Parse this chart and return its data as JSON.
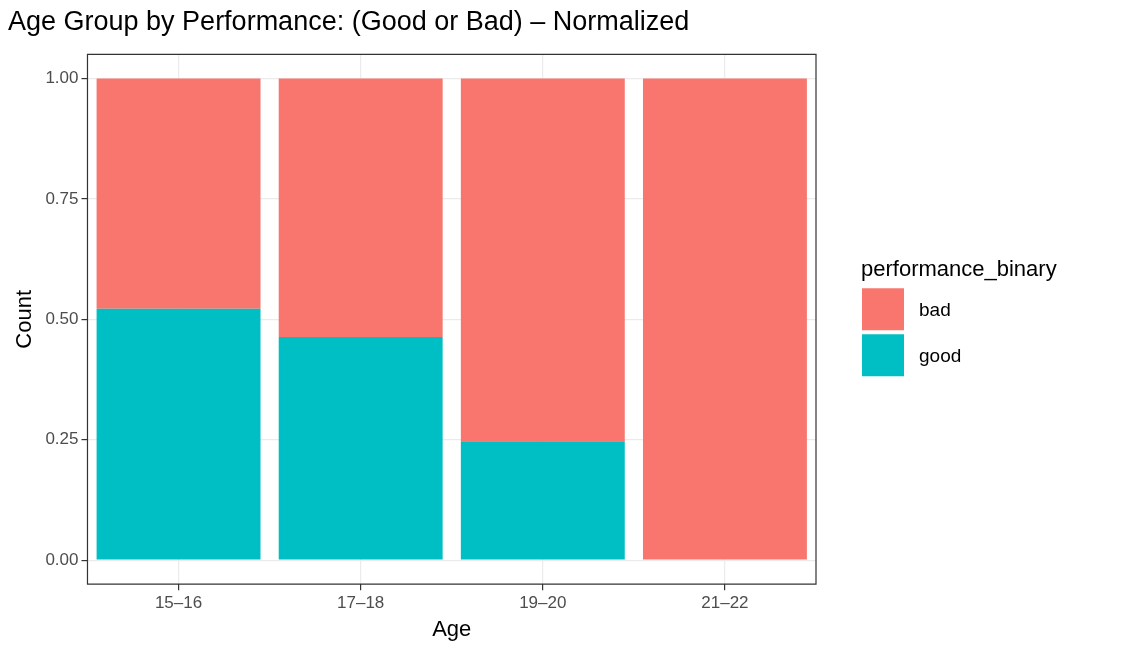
{
  "chart_data": {
    "type": "bar",
    "title": "Age Group by Performance: (Good or Bad) – Normalized",
    "xlabel": "Age",
    "ylabel": "Count",
    "legend_title": "performance_binary",
    "categories": [
      "15–16",
      "17–18",
      "19–20",
      "21–22"
    ],
    "stacked": true,
    "series": [
      {
        "name": "good",
        "color": "#00bfc4",
        "values": [
          0.522,
          0.463,
          0.247,
          0
        ]
      },
      {
        "name": "bad",
        "color": "#f8766d",
        "values": [
          0.478,
          0.537,
          0.753,
          1
        ]
      }
    ],
    "ylim": [
      -0.05,
      1.05
    ],
    "yticks": [
      {
        "value": 0,
        "label": "0.00"
      },
      {
        "value": 0.25,
        "label": "0.25"
      },
      {
        "value": 0.5,
        "label": "0.50"
      },
      {
        "value": 0.75,
        "label": "0.75"
      },
      {
        "value": 1,
        "label": "1.00"
      }
    ],
    "grid": true,
    "legend": "right"
  }
}
